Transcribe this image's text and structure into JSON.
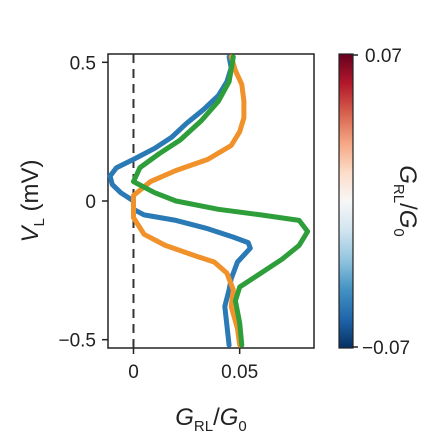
{
  "chart_data": {
    "type": "line",
    "xlabel": {
      "main": "G",
      "sub": "RL",
      "sep": "/",
      "main2": "G",
      "sub2": "0"
    },
    "ylabel": {
      "main": "V",
      "sub": "L",
      "unit": " (mV)"
    },
    "xlim": [
      -0.012,
      0.085
    ],
    "ylim": [
      -0.53,
      0.53
    ],
    "xticks": [
      {
        "value": 0,
        "label": "0"
      },
      {
        "value": 0.05,
        "label": "0.05"
      }
    ],
    "yticks": [
      {
        "value": 0.5,
        "label": "0.5"
      },
      {
        "value": 0,
        "label": "0"
      },
      {
        "value": -0.5,
        "label": "−0.5"
      }
    ],
    "reference_line": {
      "x": 0,
      "style": "dashed",
      "color": "#333333"
    },
    "series": [
      {
        "color": "#2a7ab5",
        "points": [
          [
            0.045,
            -0.52
          ],
          [
            0.043,
            -0.38
          ],
          [
            0.045,
            -0.32
          ],
          [
            0.046,
            -0.28
          ],
          [
            0.049,
            -0.22
          ],
          [
            0.055,
            -0.17
          ],
          [
            0.054,
            -0.15
          ],
          [
            0.047,
            -0.13
          ],
          [
            0.035,
            -0.1
          ],
          [
            0.02,
            -0.07
          ],
          [
            0.005,
            -0.05
          ],
          [
            0.0,
            -0.03
          ],
          [
            0.0,
            0.0
          ],
          [
            -0.006,
            0.03
          ],
          [
            -0.01,
            0.06
          ],
          [
            -0.011,
            0.09
          ],
          [
            -0.008,
            0.12
          ],
          [
            0.0,
            0.15
          ],
          [
            0.01,
            0.19
          ],
          [
            0.018,
            0.23
          ],
          [
            0.025,
            0.28
          ],
          [
            0.033,
            0.33
          ],
          [
            0.04,
            0.38
          ],
          [
            0.044,
            0.43
          ],
          [
            0.046,
            0.48
          ],
          [
            0.045,
            0.52
          ]
        ]
      },
      {
        "color": "#f0912a",
        "points": [
          [
            0.05,
            -0.52
          ],
          [
            0.049,
            -0.46
          ],
          [
            0.046,
            -0.38
          ],
          [
            0.047,
            -0.32
          ],
          [
            0.044,
            -0.26
          ],
          [
            0.038,
            -0.22
          ],
          [
            0.03,
            -0.2
          ],
          [
            0.015,
            -0.16
          ],
          [
            0.005,
            -0.12
          ],
          [
            0.0,
            -0.06
          ],
          [
            0.0,
            0.02
          ],
          [
            0.008,
            0.07
          ],
          [
            0.02,
            0.11
          ],
          [
            0.035,
            0.15
          ],
          [
            0.046,
            0.2
          ],
          [
            0.05,
            0.25
          ],
          [
            0.052,
            0.3
          ],
          [
            0.052,
            0.36
          ],
          [
            0.051,
            0.42
          ],
          [
            0.048,
            0.47
          ],
          [
            0.046,
            0.52
          ]
        ]
      },
      {
        "color": "#2e9e3a",
        "points": [
          [
            0.051,
            -0.52
          ],
          [
            0.05,
            -0.44
          ],
          [
            0.048,
            -0.36
          ],
          [
            0.05,
            -0.31
          ],
          [
            0.058,
            -0.27
          ],
          [
            0.07,
            -0.21
          ],
          [
            0.078,
            -0.16
          ],
          [
            0.082,
            -0.11
          ],
          [
            0.078,
            -0.07
          ],
          [
            0.06,
            -0.05
          ],
          [
            0.04,
            -0.03
          ],
          [
            0.02,
            0.0
          ],
          [
            0.01,
            0.03
          ],
          [
            0.0,
            0.07
          ],
          [
            0.003,
            0.12
          ],
          [
            0.012,
            0.17
          ],
          [
            0.022,
            0.22
          ],
          [
            0.032,
            0.29
          ],
          [
            0.04,
            0.36
          ],
          [
            0.045,
            0.43
          ],
          [
            0.047,
            0.52
          ]
        ]
      }
    ]
  },
  "colorbar": {
    "label": {
      "main": "G",
      "sub": "RL",
      "sep": "/",
      "main2": "G",
      "sub2": "0"
    },
    "max_label": "0.07",
    "min_label": "−0.07",
    "colors": [
      "#67001f",
      "#b2182b",
      "#d6604d",
      "#f4a582",
      "#fddbc7",
      "#f7f7f7",
      "#d1e5f0",
      "#92c5de",
      "#4393c3",
      "#2166ac",
      "#053061"
    ]
  }
}
